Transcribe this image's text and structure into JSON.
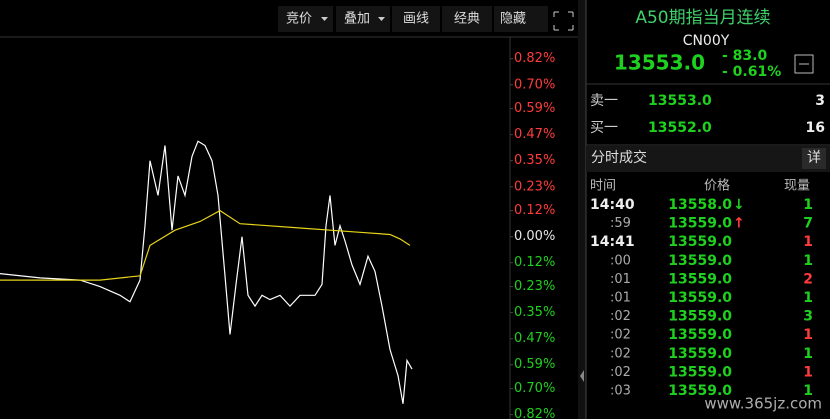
{
  "toolbar": {
    "buttons": [
      "竞价",
      "叠加",
      "画线",
      "经典",
      "隐藏"
    ]
  },
  "chart_data": {
    "type": "line",
    "ylim": [
      -0.84,
      0.92
    ],
    "xlim": [
      0,
      510
    ],
    "yticks": [
      {
        "value": 0.82,
        "label": "0.82%"
      },
      {
        "value": 0.7,
        "label": "0.70%"
      },
      {
        "value": 0.59,
        "label": "0.59%"
      },
      {
        "value": 0.47,
        "label": "0.47%"
      },
      {
        "value": 0.35,
        "label": "0.35%"
      },
      {
        "value": 0.23,
        "label": "0.23%"
      },
      {
        "value": 0.12,
        "label": "0.12%"
      },
      {
        "value": 0,
        "label": "0.00%"
      },
      {
        "value": -0.12,
        "label": "0.12%"
      },
      {
        "value": -0.23,
        "label": "0.23%"
      },
      {
        "value": -0.35,
        "label": "0.35%"
      },
      {
        "value": -0.47,
        "label": "0.47%"
      },
      {
        "value": -0.59,
        "label": "0.59%"
      },
      {
        "value": -0.7,
        "label": "0.70%"
      },
      {
        "value": -0.82,
        "label": "0.82%"
      }
    ],
    "up_color": "#ff3b3b",
    "down_color": "#1fd11f",
    "zero_color": "#e6e6e6",
    "series": [
      {
        "color": "#ffffff",
        "x": [
          0,
          40,
          80,
          100,
          120,
          130,
          140,
          145,
          150,
          158,
          165,
          172,
          178,
          185,
          192,
          198,
          205,
          212,
          218,
          225,
          230,
          236,
          242,
          248,
          255,
          262,
          270,
          280,
          290,
          300,
          315,
          322,
          326,
          330,
          335,
          340,
          345,
          352,
          360,
          368,
          375,
          382,
          390,
          398,
          403,
          407,
          412
        ],
        "values": [
          -0.17,
          -0.19,
          -0.2,
          -0.23,
          -0.27,
          -0.3,
          -0.2,
          0.05,
          0.35,
          0.19,
          0.42,
          0.03,
          0.28,
          0.19,
          0.37,
          0.44,
          0.42,
          0.35,
          0.19,
          -0.18,
          -0.45,
          -0.22,
          0,
          -0.27,
          -0.32,
          -0.27,
          -0.29,
          -0.27,
          -0.32,
          -0.27,
          -0.27,
          -0.22,
          0.05,
          0.19,
          -0.04,
          0.05,
          -0.02,
          -0.13,
          -0.22,
          -0.09,
          -0.16,
          -0.32,
          -0.52,
          -0.64,
          -0.77,
          -0.57,
          -0.61
        ]
      },
      {
        "color": "#e6d41a",
        "x": [
          0,
          100,
          140,
          150,
          175,
          200,
          220,
          240,
          300,
          360,
          390,
          400,
          410
        ],
        "values": [
          -0.2,
          -0.2,
          -0.18,
          -0.04,
          0.03,
          0.07,
          0.12,
          0.06,
          0.04,
          0.02,
          0.01,
          -0.01,
          -0.04
        ]
      }
    ]
  },
  "quote": {
    "title": "A50期指当月连续",
    "code": "CN00Y",
    "price": "13553.0",
    "change": "- 83.0",
    "change_pct": "- 0.61%",
    "order_book": [
      {
        "label": "卖一",
        "price": "13553.0",
        "volume": 3
      },
      {
        "label": "买一",
        "price": "13552.0",
        "volume": 16
      }
    ]
  },
  "trades": {
    "title": "分时成交",
    "detail": "详",
    "columns": [
      "时间",
      "价格",
      "现量"
    ],
    "rows": [
      {
        "time": "14:40",
        "price": "13558.0",
        "arrow": "↓",
        "arrow_color": "#1fd11f",
        "volume": 1,
        "volume_color": "#1fd11f"
      },
      {
        "time": ":59",
        "price": "13559.0",
        "arrow": "↑",
        "arrow_color": "#ff3b3b",
        "volume": 7,
        "volume_color": "#1fd11f"
      },
      {
        "time": "14:41",
        "price": "13559.0",
        "volume": 1,
        "volume_color": "#ff3b3b"
      },
      {
        "time": ":00",
        "price": "13559.0",
        "volume": 1,
        "volume_color": "#1fd11f"
      },
      {
        "time": ":01",
        "price": "13559.0",
        "volume": 2,
        "volume_color": "#ff3b3b"
      },
      {
        "time": ":01",
        "price": "13559.0",
        "volume": 1,
        "volume_color": "#1fd11f"
      },
      {
        "time": ":02",
        "price": "13559.0",
        "volume": 3,
        "volume_color": "#1fd11f"
      },
      {
        "time": ":02",
        "price": "13559.0",
        "volume": 1,
        "volume_color": "#ff3b3b"
      },
      {
        "time": ":02",
        "price": "13559.0",
        "volume": 1,
        "volume_color": "#1fd11f"
      },
      {
        "time": ":02",
        "price": "13559.0",
        "volume": 1,
        "volume_color": "#ff3b3b"
      },
      {
        "time": ":03",
        "price": "13559.0",
        "volume": 1,
        "volume_color": "#1fd11f"
      }
    ]
  },
  "watermark": "www.365jz.com"
}
